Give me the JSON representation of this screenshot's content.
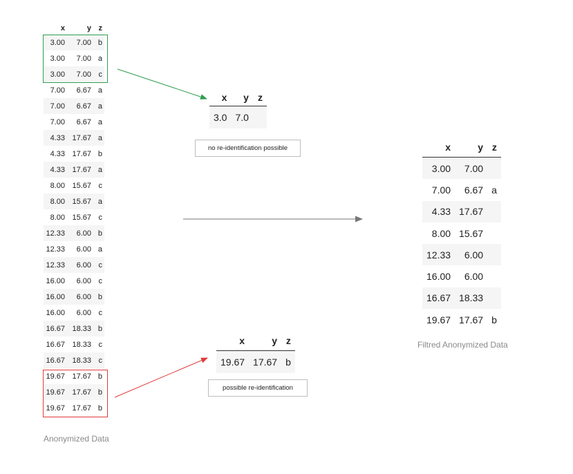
{
  "columns": [
    "x",
    "y",
    "z"
  ],
  "anonymized_table": {
    "rows": [
      [
        "3.00",
        "7.00",
        "b"
      ],
      [
        "3.00",
        "7.00",
        "a"
      ],
      [
        "3.00",
        "7.00",
        "c"
      ],
      [
        "7.00",
        "6.67",
        "a"
      ],
      [
        "7.00",
        "6.67",
        "a"
      ],
      [
        "7.00",
        "6.67",
        "a"
      ],
      [
        "4.33",
        "17.67",
        "a"
      ],
      [
        "4.33",
        "17.67",
        "b"
      ],
      [
        "4.33",
        "17.67",
        "a"
      ],
      [
        "8.00",
        "15.67",
        "c"
      ],
      [
        "8.00",
        "15.67",
        "a"
      ],
      [
        "8.00",
        "15.67",
        "c"
      ],
      [
        "12.33",
        "6.00",
        "b"
      ],
      [
        "12.33",
        "6.00",
        "a"
      ],
      [
        "12.33",
        "6.00",
        "c"
      ],
      [
        "16.00",
        "6.00",
        "c"
      ],
      [
        "16.00",
        "6.00",
        "b"
      ],
      [
        "16.00",
        "6.00",
        "c"
      ],
      [
        "16.67",
        "18.33",
        "b"
      ],
      [
        "16.67",
        "18.33",
        "c"
      ],
      [
        "16.67",
        "18.33",
        "c"
      ],
      [
        "19.67",
        "17.67",
        "b"
      ],
      [
        "19.67",
        "17.67",
        "b"
      ],
      [
        "19.67",
        "17.67",
        "b"
      ]
    ],
    "caption": "Anonymized Data"
  },
  "group_safe": {
    "row": [
      "3.0",
      "7.0",
      ""
    ],
    "note": "no re-identification possible",
    "color": "#2e9e4e"
  },
  "group_risky": {
    "row": [
      "19.67",
      "17.67",
      "b"
    ],
    "note": "possible re-identification",
    "color": "#e03a3a"
  },
  "filtered_table": {
    "rows": [
      [
        "3.00",
        "7.00",
        ""
      ],
      [
        "7.00",
        "6.67",
        "a"
      ],
      [
        "4.33",
        "17.67",
        ""
      ],
      [
        "8.00",
        "15.67",
        ""
      ],
      [
        "12.33",
        "6.00",
        ""
      ],
      [
        "16.00",
        "6.00",
        ""
      ],
      [
        "16.67",
        "18.33",
        ""
      ],
      [
        "19.67",
        "17.67",
        "b"
      ]
    ],
    "caption": "Filtred Anonymized Data"
  }
}
